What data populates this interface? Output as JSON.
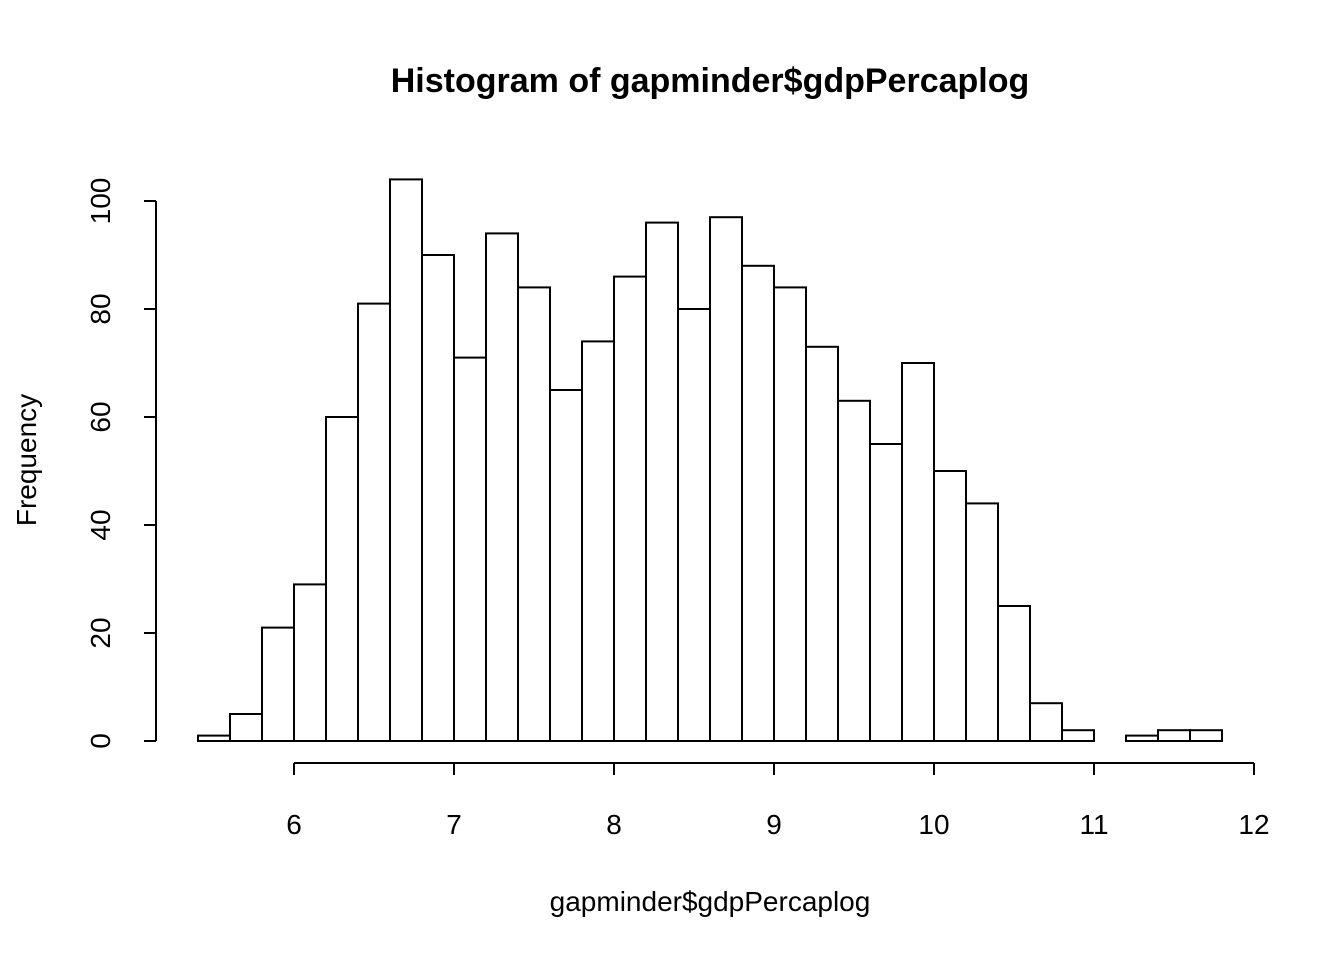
{
  "chart_data": {
    "type": "bar",
    "title": "Histogram of gapminder$gdpPercaplog",
    "xlabel": "gapminder$gdpPercaplog",
    "ylabel": "Frequency",
    "bin_edges": [
      5.4,
      5.6,
      5.8,
      6.0,
      6.2,
      6.4,
      6.6,
      6.8,
      7.0,
      7.2,
      7.4,
      7.6,
      7.8,
      8.0,
      8.2,
      8.4,
      8.6,
      8.8,
      9.0,
      9.2,
      9.4,
      9.6,
      9.8,
      10.0,
      10.2,
      10.4,
      10.6,
      10.8,
      11.0,
      11.2,
      11.4,
      11.6,
      11.8
    ],
    "values": [
      1,
      5,
      21,
      29,
      60,
      81,
      104,
      90,
      71,
      94,
      84,
      65,
      74,
      86,
      96,
      80,
      97,
      88,
      84,
      73,
      63,
      55,
      70,
      50,
      44,
      25,
      7,
      2,
      0,
      1,
      2,
      2
    ],
    "xlim": [
      5.4,
      12
    ],
    "ylim": [
      0,
      104
    ],
    "x_ticks": [
      6,
      7,
      8,
      9,
      10,
      11,
      12
    ],
    "y_ticks": [
      0,
      20,
      40,
      60,
      80,
      100
    ],
    "grid": false,
    "legend": "none",
    "bar_fill": "#ffffff",
    "bar_stroke": "#000000"
  }
}
